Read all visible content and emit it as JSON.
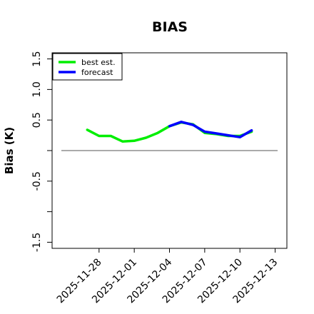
{
  "chart_data": {
    "type": "line",
    "title": "BIAS",
    "xlabel": "",
    "ylabel": "Bias (K)",
    "ylim": [
      -1.6,
      1.6
    ],
    "yticks": [
      -1.5,
      -1.0,
      -0.5,
      0.0,
      0.5,
      1.0,
      1.5
    ],
    "yticklabels": [
      "-1.5",
      "",
      "-0.5",
      "",
      "0.5",
      "1.0",
      "1.5"
    ],
    "xlim": [
      "2025-11-24",
      "2025-12-14"
    ],
    "xticks": [
      "2025-11-28",
      "2025-12-01",
      "2025-12-04",
      "2025-12-07",
      "2025-12-10",
      "2025-12-13"
    ],
    "highlight_tick": "2025-12-04",
    "highlight_color": "#228B22",
    "reference_line": 0,
    "legend_position": "top-left",
    "series": [
      {
        "name": "best est.",
        "color": "#00ee00",
        "x": [
          "2025-11-27",
          "2025-11-28",
          "2025-11-29",
          "2025-11-30",
          "2025-12-01",
          "2025-12-02",
          "2025-12-03",
          "2025-12-04",
          "2025-12-05",
          "2025-12-06",
          "2025-12-07",
          "2025-12-08",
          "2025-12-09",
          "2025-12-10",
          "2025-12-11"
        ],
        "values": [
          0.34,
          0.24,
          0.24,
          0.15,
          0.16,
          0.21,
          0.29,
          0.4,
          0.46,
          0.43,
          0.29,
          0.27,
          0.24,
          0.24,
          0.31
        ]
      },
      {
        "name": "forecast",
        "color": "#0000ff",
        "x": [
          "2025-12-04",
          "2025-12-05",
          "2025-12-06",
          "2025-12-07",
          "2025-12-08",
          "2025-12-09",
          "2025-12-10",
          "2025-12-11"
        ],
        "values": [
          0.4,
          0.47,
          0.42,
          0.31,
          0.28,
          0.25,
          0.22,
          0.33
        ]
      }
    ]
  }
}
